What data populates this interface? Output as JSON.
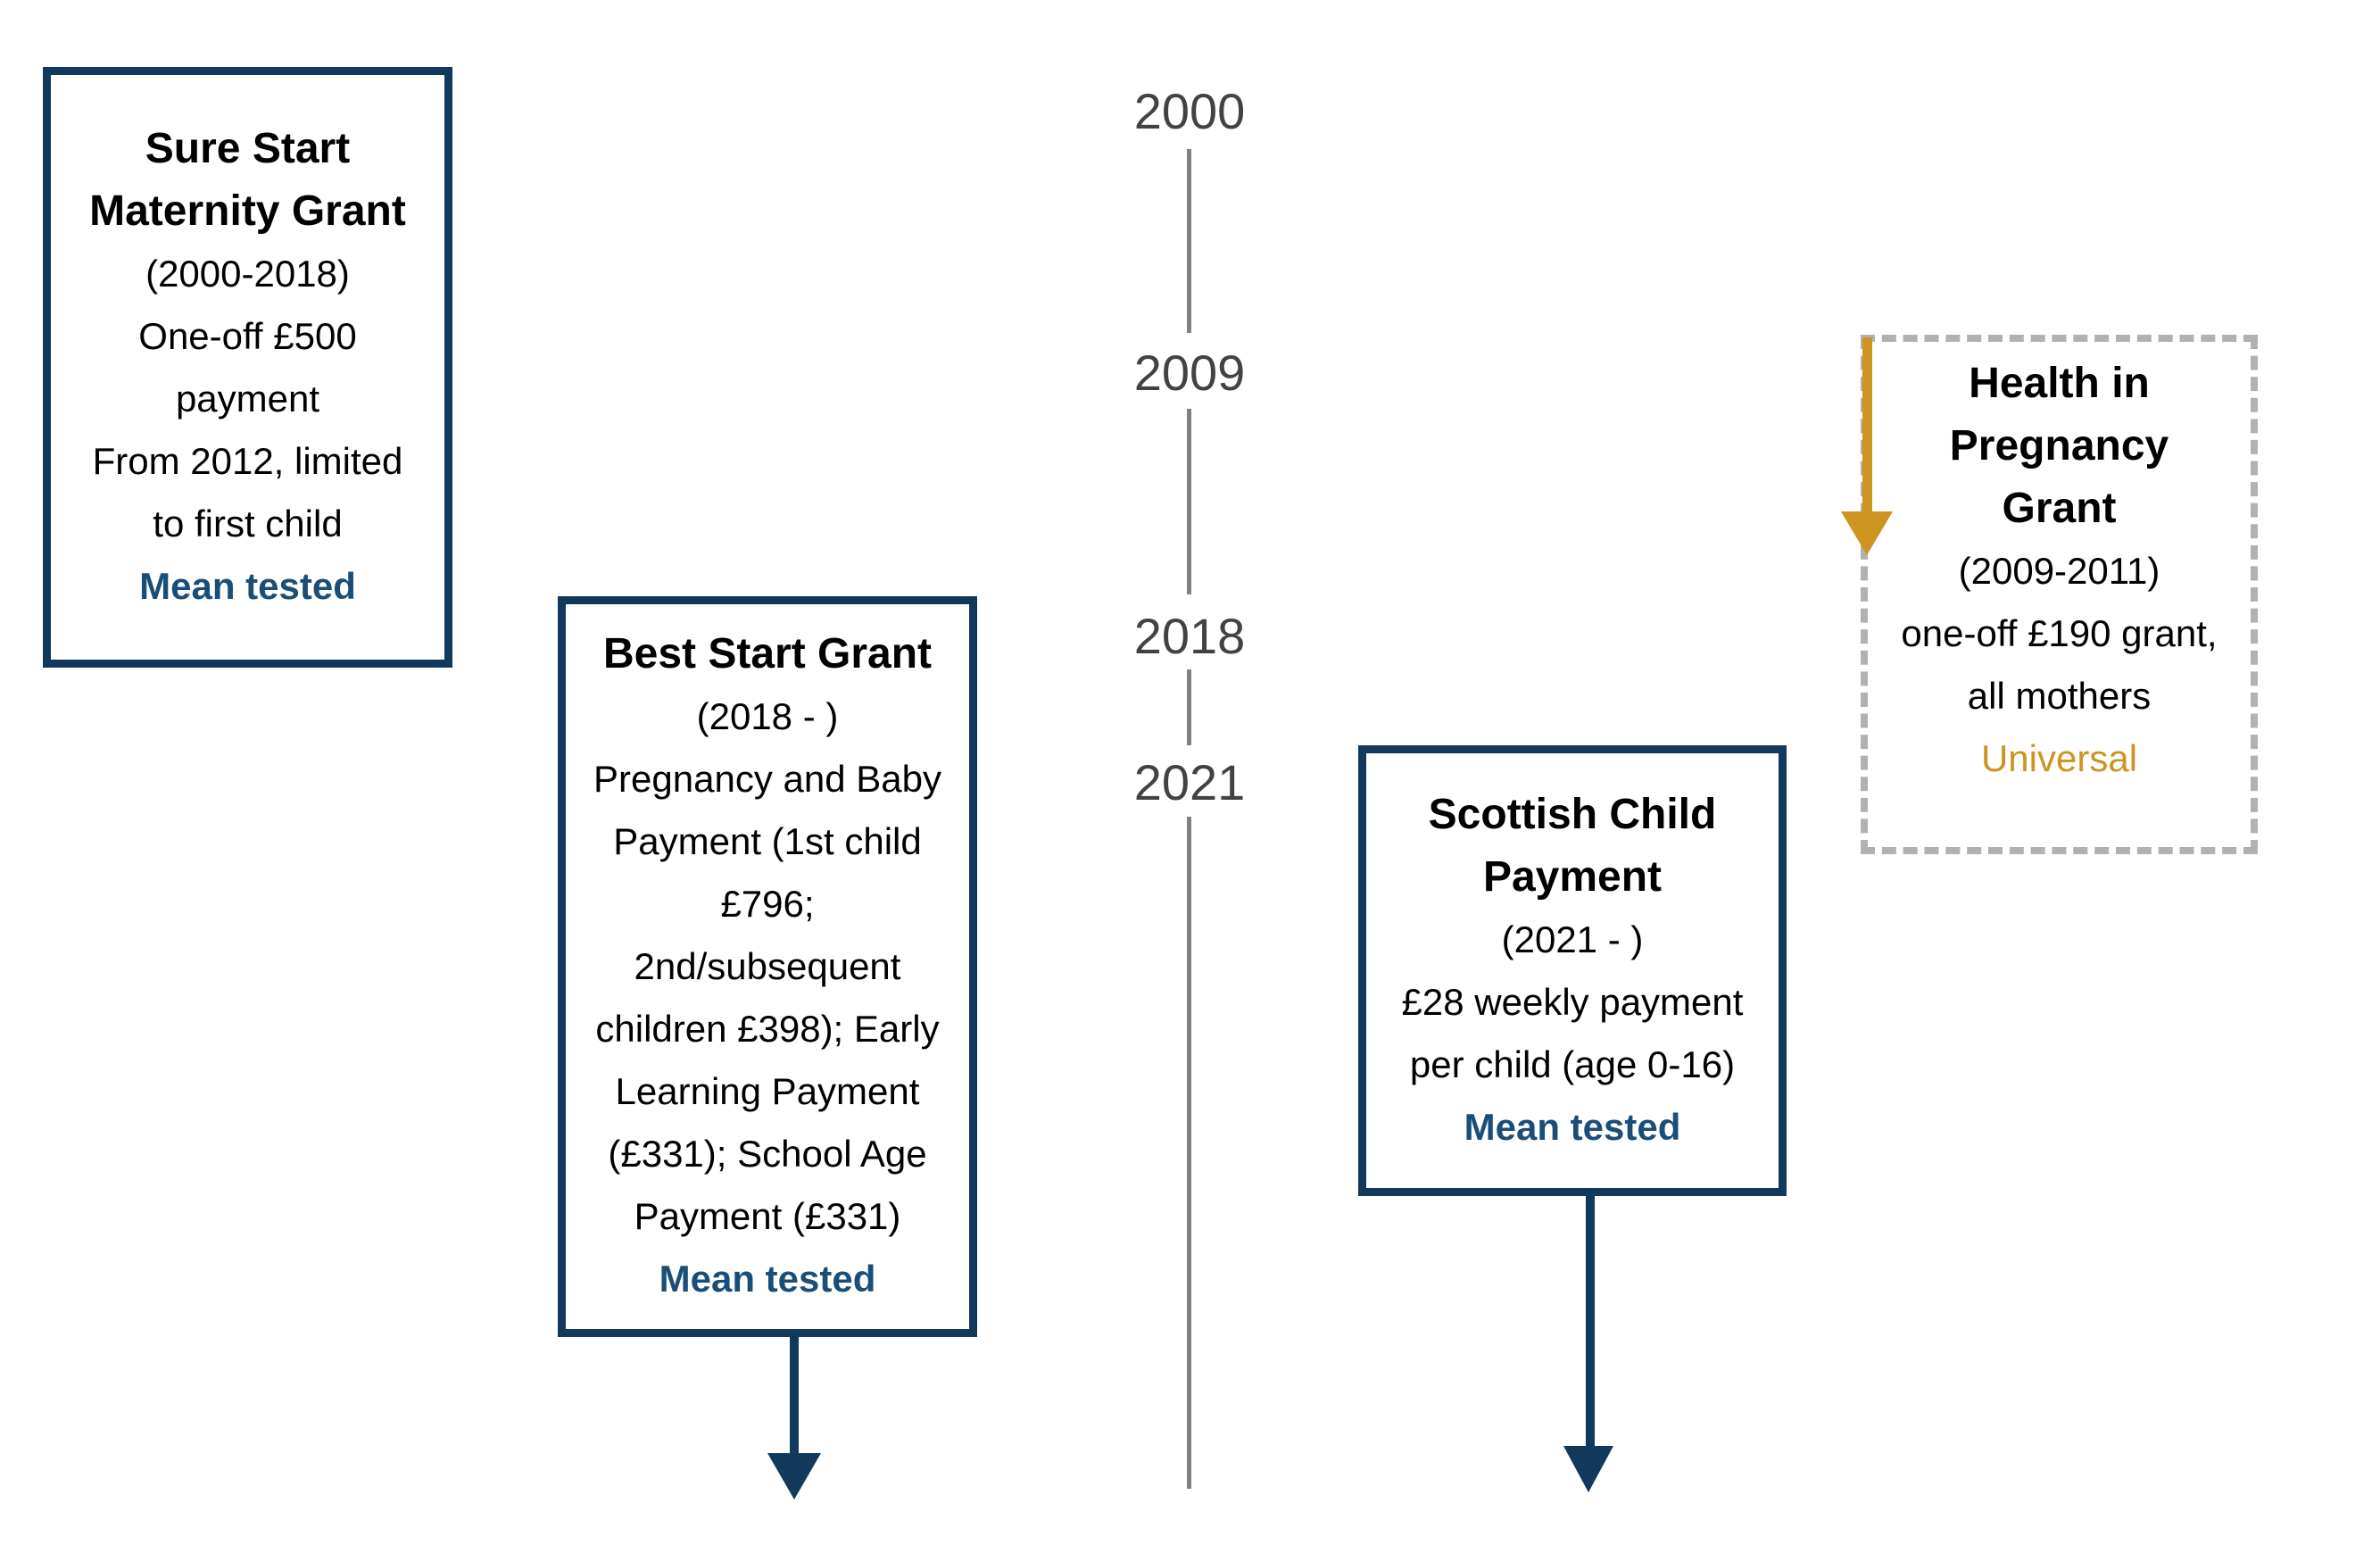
{
  "colors": {
    "navy_border": "#12395c",
    "navy_text": "#1a4e78",
    "gold": "#cc9420",
    "timeline_line": "#7f8285",
    "timeline_year_text": "#414244",
    "dashed_border": "#b1b1b1",
    "background": "#ffffff"
  },
  "timeline": {
    "years": [
      "2000",
      "2009",
      "2018",
      "2021"
    ]
  },
  "boxes": {
    "sure_start": {
      "title": "Sure Start\nMaternity Grant",
      "period": "(2000-2018)",
      "body": "One-off £500\npayment\nFrom 2012, limited\nto first child",
      "tag": "Mean tested"
    },
    "best_start": {
      "title": "Best Start Grant",
      "period": "(2018 - )",
      "body": "Pregnancy and Baby\nPayment (1st child\n£796;\n2nd/subsequent\nchildren £398); Early\nLearning Payment\n(£331); School Age\nPayment (£331)",
      "tag": "Mean tested"
    },
    "scottish_child": {
      "title": "Scottish Child\nPayment",
      "period": "(2021 - )",
      "body": "£28 weekly payment\nper child (age 0-16)",
      "tag": "Mean tested"
    },
    "health_pregnancy": {
      "title": "Health in\nPregnancy\nGrant",
      "period": "(2009-2011)",
      "body": "one-off £190 grant,\nall mothers",
      "tag": "Universal"
    }
  }
}
